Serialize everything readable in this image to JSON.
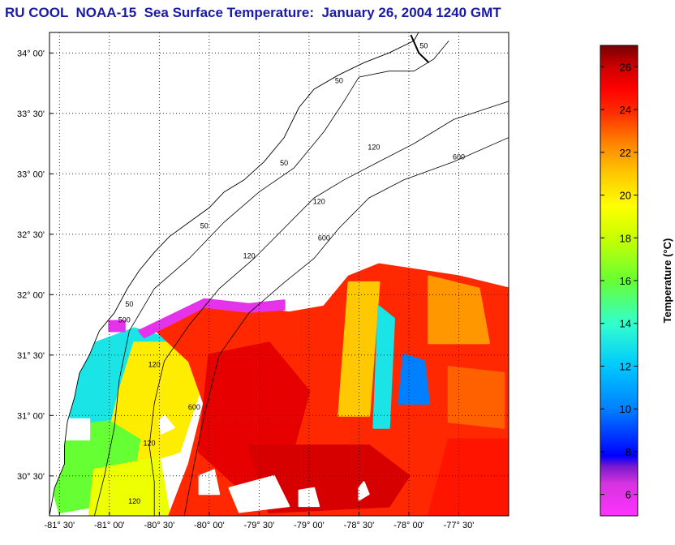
{
  "title": "RU COOL  NOAA-15  Sea Surface Temperature:  January 26, 2004 1240 GMT",
  "map": {
    "lat_range": [
      30.17,
      34.17
    ],
    "lon_range": [
      -81.6,
      -77.0
    ],
    "lat_ticks": [
      {
        "value": 34.0,
        "label": "34° 00'"
      },
      {
        "value": 33.5,
        "label": "33° 30'"
      },
      {
        "value": 33.0,
        "label": "33° 00'"
      },
      {
        "value": 32.5,
        "label": "32° 30'"
      },
      {
        "value": 32.0,
        "label": "32° 00'"
      },
      {
        "value": 31.5,
        "label": "31° 30'"
      },
      {
        "value": 31.0,
        "label": "31° 00'"
      },
      {
        "value": 30.5,
        "label": "30° 30'"
      }
    ],
    "lon_ticks": [
      {
        "value": -81.5,
        "label": "-81° 30'"
      },
      {
        "value": -81.0,
        "label": "-81° 00'"
      },
      {
        "value": -80.5,
        "label": "-80° 30'"
      },
      {
        "value": -80.0,
        "label": "-80° 00'"
      },
      {
        "value": -79.5,
        "label": "-79° 30'"
      },
      {
        "value": -79.0,
        "label": "-79° 00'"
      },
      {
        "value": -78.5,
        "label": "-78° 30'"
      },
      {
        "value": -78.0,
        "label": "-78° 00'"
      },
      {
        "value": -77.5,
        "label": "-77° 30'"
      }
    ],
    "grid": true,
    "contour_labels": [
      {
        "text": "50",
        "lon": -77.85,
        "lat": 34.04
      },
      {
        "text": "50",
        "lon": -78.7,
        "lat": 33.75
      },
      {
        "text": "50",
        "lon": -79.25,
        "lat": 33.07
      },
      {
        "text": "50",
        "lon": -80.05,
        "lat": 32.55
      },
      {
        "text": "50",
        "lon": -80.8,
        "lat": 31.9
      },
      {
        "text": "120",
        "lon": -78.35,
        "lat": 33.2
      },
      {
        "text": "120",
        "lon": -78.9,
        "lat": 32.75
      },
      {
        "text": "120",
        "lon": -79.6,
        "lat": 32.3
      },
      {
        "text": "120",
        "lon": -80.55,
        "lat": 31.4
      },
      {
        "text": "120",
        "lon": -80.6,
        "lat": 30.75
      },
      {
        "text": "120",
        "lon": -80.75,
        "lat": 30.27
      },
      {
        "text": "600",
        "lon": -77.5,
        "lat": 33.12
      },
      {
        "text": "600",
        "lon": -78.85,
        "lat": 32.45
      },
      {
        "text": "600",
        "lon": -80.15,
        "lat": 31.05
      },
      {
        "text": "500",
        "lon": -80.85,
        "lat": 31.77
      }
    ]
  },
  "colorbar": {
    "min": 5,
    "max": 27,
    "ticks": [
      6,
      8,
      10,
      12,
      14,
      16,
      18,
      20,
      22,
      24,
      26
    ],
    "label": "Temperature (°C)",
    "stops": [
      {
        "t": 5,
        "color": "#ff33ff"
      },
      {
        "t": 6.5,
        "color": "#d633e0"
      },
      {
        "t": 7.3,
        "color": "#7a1acc"
      },
      {
        "t": 7.8,
        "color": "#0000ff"
      },
      {
        "t": 10,
        "color": "#0080ff"
      },
      {
        "t": 12,
        "color": "#00c8ff"
      },
      {
        "t": 14,
        "color": "#33ffcc"
      },
      {
        "t": 16,
        "color": "#66ff33"
      },
      {
        "t": 18,
        "color": "#c8ff00"
      },
      {
        "t": 19.5,
        "color": "#ffff00"
      },
      {
        "t": 21,
        "color": "#ffc800"
      },
      {
        "t": 22.5,
        "color": "#ff8000"
      },
      {
        "t": 23.8,
        "color": "#ff3000"
      },
      {
        "t": 25,
        "color": "#ff0000"
      },
      {
        "t": 26,
        "color": "#cc0000"
      },
      {
        "t": 27,
        "color": "#7a0000"
      }
    ]
  },
  "sst_regions": [
    {
      "temp": 13,
      "points": [
        [
          -81.3,
          31.55
        ],
        [
          -80.75,
          31.72
        ],
        [
          -80.35,
          31.62
        ],
        [
          -80.35,
          31.2
        ],
        [
          -80.55,
          30.9
        ],
        [
          -80.9,
          30.85
        ],
        [
          -81.35,
          30.95
        ],
        [
          -81.5,
          31.1
        ]
      ]
    },
    {
      "temp": 20,
      "points": [
        [
          -80.75,
          31.6
        ],
        [
          -80.3,
          31.6
        ],
        [
          -80.1,
          31.2
        ],
        [
          -80.3,
          30.7
        ],
        [
          -80.7,
          30.6
        ],
        [
          -81.0,
          30.85
        ],
        [
          -80.9,
          31.2
        ]
      ]
    },
    {
      "temp": 16,
      "points": [
        [
          -81.55,
          30.9
        ],
        [
          -81.0,
          30.95
        ],
        [
          -80.7,
          30.8
        ],
        [
          -80.8,
          30.3
        ],
        [
          -81.5,
          30.2
        ],
        [
          -81.6,
          30.5
        ]
      ]
    },
    {
      "temp": 19,
      "points": [
        [
          -81.15,
          30.55
        ],
        [
          -80.5,
          30.65
        ],
        [
          -80.4,
          30.17
        ],
        [
          -81.2,
          30.17
        ]
      ]
    },
    {
      "temp": 24,
      "points": [
        [
          -80.55,
          31.72
        ],
        [
          -80.05,
          31.95
        ],
        [
          -79.6,
          31.9
        ],
        [
          -79.2,
          31.85
        ],
        [
          -78.85,
          31.9
        ],
        [
          -78.6,
          32.15
        ],
        [
          -78.3,
          32.25
        ],
        [
          -77.9,
          32.2
        ],
        [
          -77.5,
          32.15
        ],
        [
          -77.0,
          32.05
        ],
        [
          -77.0,
          30.17
        ],
        [
          -80.4,
          30.17
        ],
        [
          -80.2,
          30.6
        ],
        [
          -80.05,
          31.1
        ],
        [
          -80.2,
          31.45
        ]
      ]
    },
    {
      "temp": 25.5,
      "points": [
        [
          -80.0,
          31.5
        ],
        [
          -79.4,
          31.6
        ],
        [
          -79.0,
          31.2
        ],
        [
          -79.2,
          30.6
        ],
        [
          -79.7,
          30.4
        ],
        [
          -80.1,
          30.7
        ]
      ]
    },
    {
      "temp": 25.8,
      "points": [
        [
          -79.6,
          30.75
        ],
        [
          -78.4,
          30.75
        ],
        [
          -78.0,
          30.5
        ],
        [
          -78.2,
          30.25
        ],
        [
          -79.4,
          30.2
        ]
      ]
    },
    {
      "temp": 23,
      "points": [
        [
          -77.6,
          31.4
        ],
        [
          -77.05,
          31.35
        ],
        [
          -77.05,
          30.9
        ],
        [
          -77.6,
          30.95
        ]
      ]
    },
    {
      "temp": 24.5,
      "points": [
        [
          -77.6,
          30.8
        ],
        [
          -77.0,
          30.8
        ],
        [
          -77.0,
          30.17
        ],
        [
          -77.8,
          30.17
        ]
      ]
    },
    {
      "temp": 21,
      "points": [
        [
          -78.6,
          32.1
        ],
        [
          -78.3,
          32.1
        ],
        [
          -78.4,
          31.0
        ],
        [
          -78.7,
          31.0
        ]
      ]
    },
    {
      "temp": 13,
      "points": [
        [
          -78.3,
          31.9
        ],
        [
          -78.15,
          31.8
        ],
        [
          -78.2,
          30.9
        ],
        [
          -78.35,
          30.9
        ]
      ]
    },
    {
      "temp": 10,
      "points": [
        [
          -78.05,
          31.5
        ],
        [
          -77.85,
          31.45
        ],
        [
          -77.8,
          31.1
        ],
        [
          -78.1,
          31.1
        ]
      ]
    },
    {
      "temp": 22,
      "points": [
        [
          -77.8,
          32.15
        ],
        [
          -77.3,
          32.05
        ],
        [
          -77.2,
          31.6
        ],
        [
          -77.8,
          31.6
        ]
      ]
    },
    {
      "temp": 6,
      "points": [
        [
          -80.7,
          31.7
        ],
        [
          -80.05,
          31.96
        ],
        [
          -79.6,
          31.92
        ],
        [
          -79.25,
          31.95
        ],
        [
          -79.25,
          31.88
        ],
        [
          -79.6,
          31.86
        ],
        [
          -80.05,
          31.9
        ],
        [
          -80.65,
          31.65
        ]
      ]
    },
    {
      "temp": 6,
      "points": [
        [
          -81.0,
          31.78
        ],
        [
          -80.85,
          31.78
        ],
        [
          -80.85,
          31.7
        ],
        [
          -81.0,
          31.7
        ]
      ]
    }
  ],
  "cloud_regions": [
    [
      [
        -81.5,
        30.97
      ],
      [
        -81.2,
        30.97
      ],
      [
        -81.2,
        30.8
      ],
      [
        -81.5,
        30.8
      ]
    ],
    [
      [
        -80.1,
        30.5
      ],
      [
        -79.95,
        30.55
      ],
      [
        -79.9,
        30.35
      ],
      [
        -80.1,
        30.35
      ]
    ],
    [
      [
        -79.8,
        30.4
      ],
      [
        -79.35,
        30.5
      ],
      [
        -79.2,
        30.25
      ],
      [
        -79.7,
        30.2
      ]
    ],
    [
      [
        -79.1,
        30.38
      ],
      [
        -78.95,
        30.4
      ],
      [
        -78.9,
        30.25
      ],
      [
        -79.1,
        30.25
      ]
    ],
    [
      [
        -80.5,
        30.95
      ],
      [
        -80.45,
        31.0
      ],
      [
        -80.35,
        30.9
      ],
      [
        -80.48,
        30.85
      ]
    ],
    [
      [
        -78.5,
        30.4
      ],
      [
        -78.45,
        30.45
      ],
      [
        -78.4,
        30.35
      ],
      [
        -78.5,
        30.3
      ]
    ]
  ]
}
